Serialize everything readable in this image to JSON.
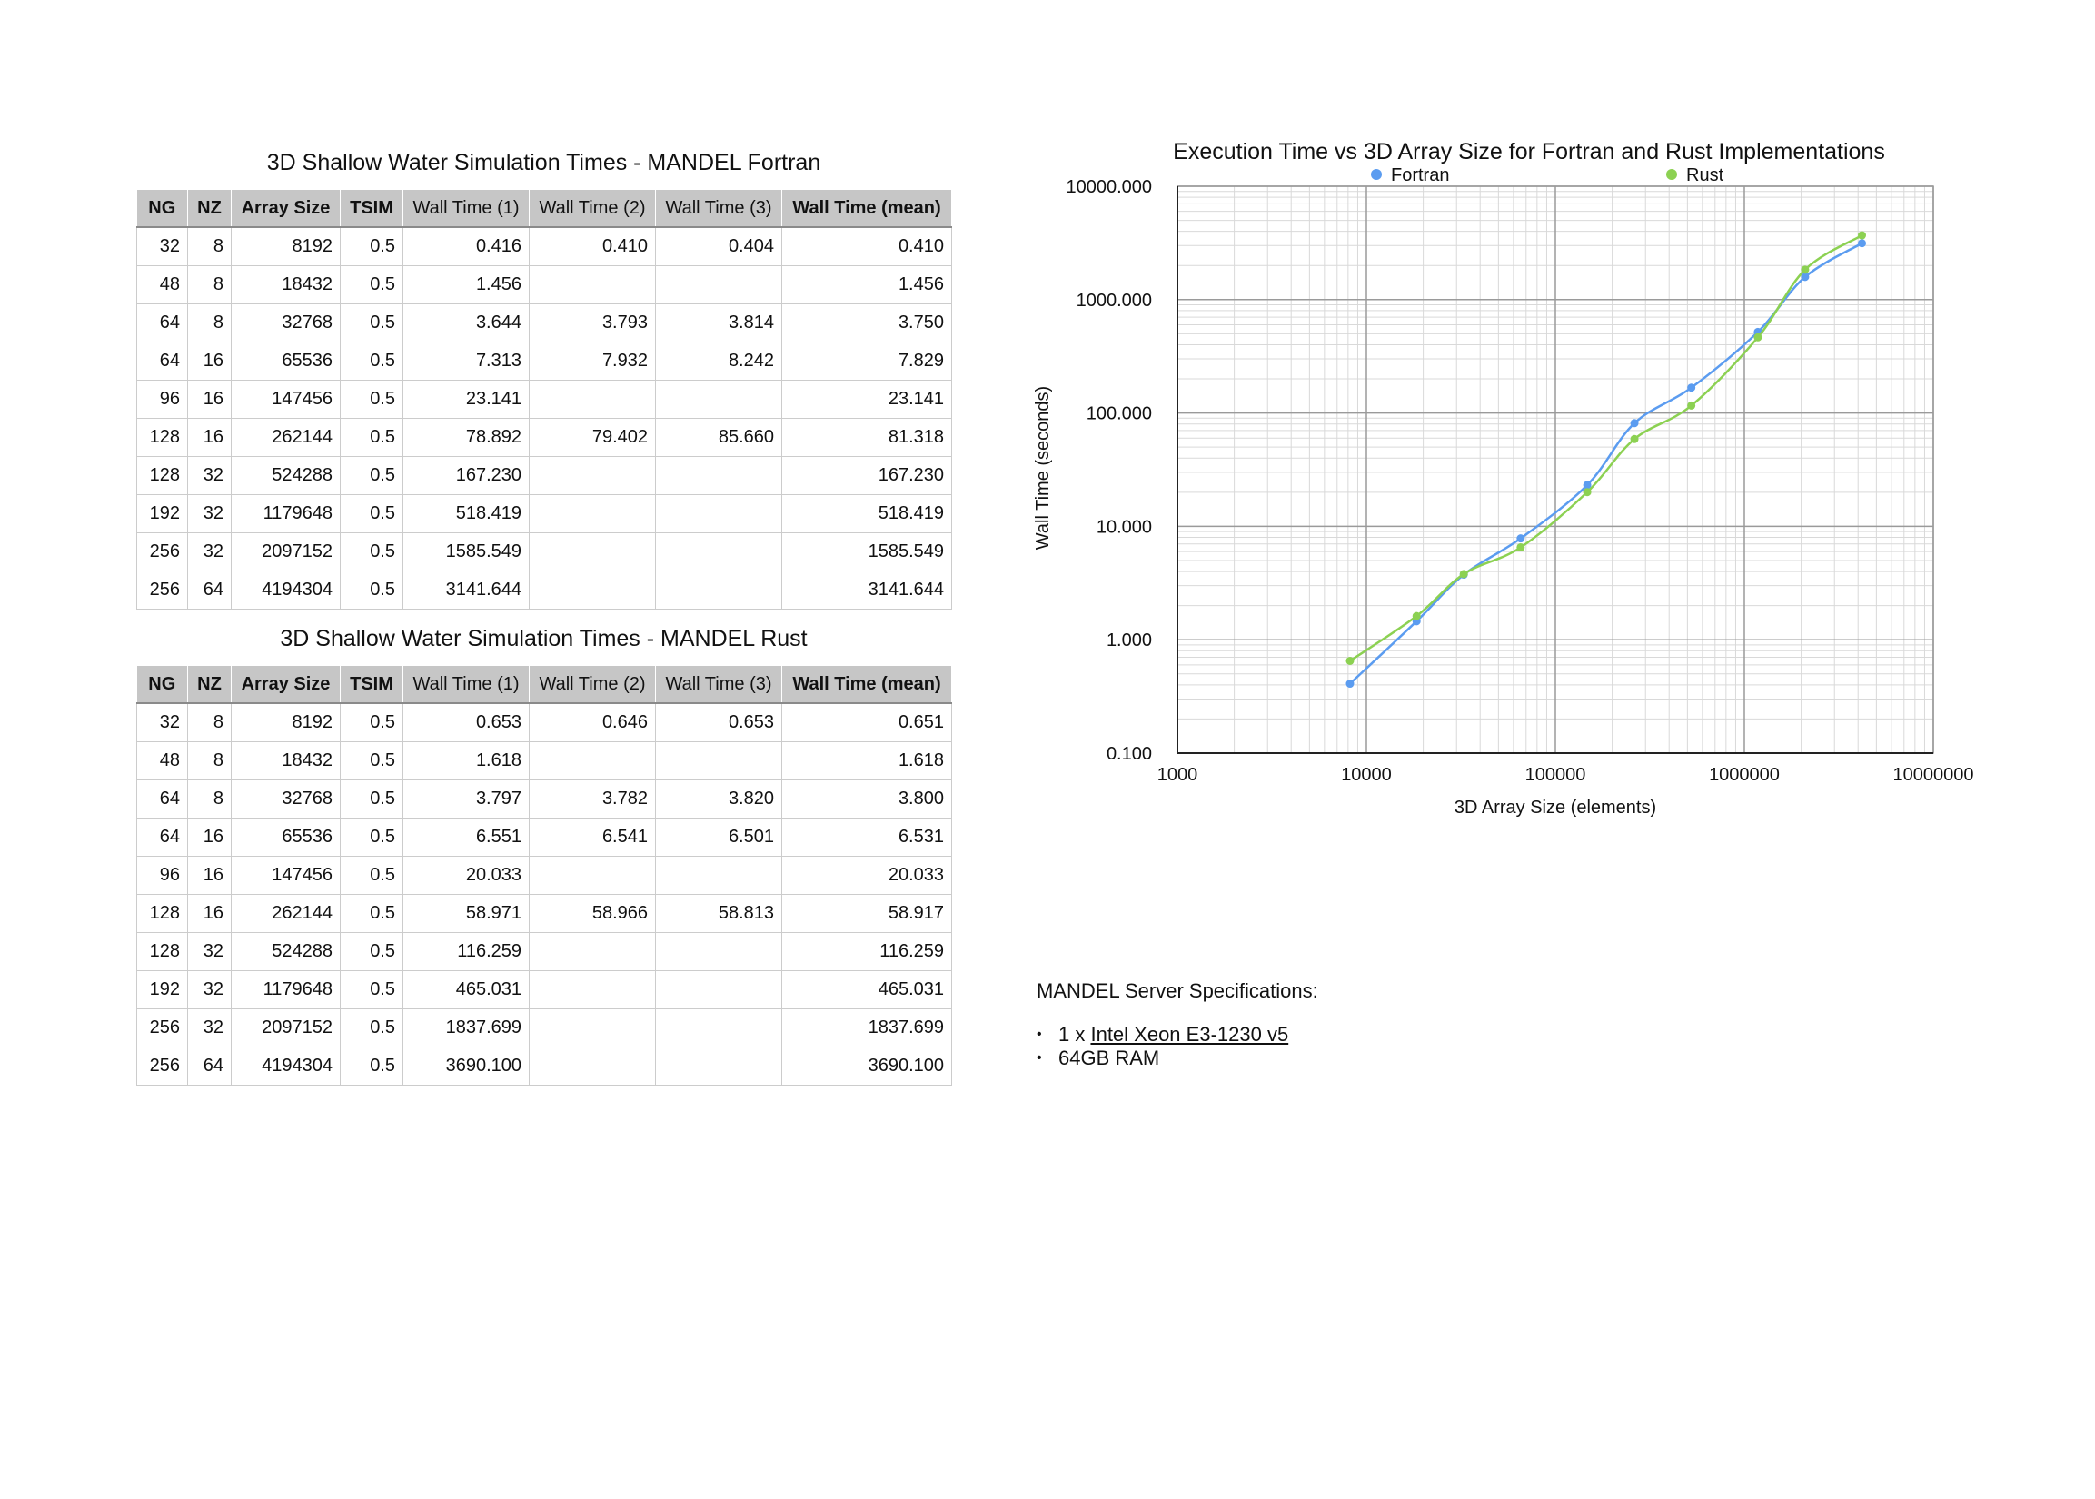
{
  "tables": [
    {
      "title": "3D Shallow Water Simulation Times - MANDEL Fortran",
      "headers": [
        "NG",
        "NZ",
        "Array Size",
        "TSIM",
        "Wall Time (1)",
        "Wall Time (2)",
        "Wall Time (3)",
        "Wall Time (mean)"
      ],
      "rows": [
        [
          "32",
          "8",
          "8192",
          "0.5",
          "0.416",
          "0.410",
          "0.404",
          "0.410"
        ],
        [
          "48",
          "8",
          "18432",
          "0.5",
          "1.456",
          "",
          "",
          "1.456"
        ],
        [
          "64",
          "8",
          "32768",
          "0.5",
          "3.644",
          "3.793",
          "3.814",
          "3.750"
        ],
        [
          "64",
          "16",
          "65536",
          "0.5",
          "7.313",
          "7.932",
          "8.242",
          "7.829"
        ],
        [
          "96",
          "16",
          "147456",
          "0.5",
          "23.141",
          "",
          "",
          "23.141"
        ],
        [
          "128",
          "16",
          "262144",
          "0.5",
          "78.892",
          "79.402",
          "85.660",
          "81.318"
        ],
        [
          "128",
          "32",
          "524288",
          "0.5",
          "167.230",
          "",
          "",
          "167.230"
        ],
        [
          "192",
          "32",
          "1179648",
          "0.5",
          "518.419",
          "",
          "",
          "518.419"
        ],
        [
          "256",
          "32",
          "2097152",
          "0.5",
          "1585.549",
          "",
          "",
          "1585.549"
        ],
        [
          "256",
          "64",
          "4194304",
          "0.5",
          "3141.644",
          "",
          "",
          "3141.644"
        ]
      ]
    },
    {
      "title": "3D Shallow Water Simulation Times - MANDEL Rust",
      "headers": [
        "NG",
        "NZ",
        "Array Size",
        "TSIM",
        "Wall Time (1)",
        "Wall Time (2)",
        "Wall Time (3)",
        "Wall Time (mean)"
      ],
      "rows": [
        [
          "32",
          "8",
          "8192",
          "0.5",
          "0.653",
          "0.646",
          "0.653",
          "0.651"
        ],
        [
          "48",
          "8",
          "18432",
          "0.5",
          "1.618",
          "",
          "",
          "1.618"
        ],
        [
          "64",
          "8",
          "32768",
          "0.5",
          "3.797",
          "3.782",
          "3.820",
          "3.800"
        ],
        [
          "64",
          "16",
          "65536",
          "0.5",
          "6.551",
          "6.541",
          "6.501",
          "6.531"
        ],
        [
          "96",
          "16",
          "147456",
          "0.5",
          "20.033",
          "",
          "",
          "20.033"
        ],
        [
          "128",
          "16",
          "262144",
          "0.5",
          "58.971",
          "58.966",
          "58.813",
          "58.917"
        ],
        [
          "128",
          "32",
          "524288",
          "0.5",
          "116.259",
          "",
          "",
          "116.259"
        ],
        [
          "192",
          "32",
          "1179648",
          "0.5",
          "465.031",
          "",
          "",
          "465.031"
        ],
        [
          "256",
          "32",
          "2097152",
          "0.5",
          "1837.699",
          "",
          "",
          "1837.699"
        ],
        [
          "256",
          "64",
          "4194304",
          "0.5",
          "3690.100",
          "",
          "",
          "3690.100"
        ]
      ]
    }
  ],
  "chart_data": {
    "type": "scatter",
    "title": "Execution Time vs 3D Array Size for Fortran and Rust Implementations",
    "xlabel": "3D Array Size (elements)",
    "ylabel": "Wall Time (seconds)",
    "x_scale": "log",
    "y_scale": "log",
    "xlim": [
      1000,
      10000000
    ],
    "ylim": [
      0.1,
      10000
    ],
    "x_ticks": [
      "1000",
      "10000",
      "100000",
      "1000000",
      "10000000"
    ],
    "y_ticks": [
      "0.100",
      "1.000",
      "10.000",
      "100.000",
      "1000.000",
      "10000.000"
    ],
    "grid": true,
    "legend_position": "top",
    "x": [
      8192,
      18432,
      32768,
      65536,
      147456,
      262144,
      524288,
      1179648,
      2097152,
      4194304
    ],
    "series": [
      {
        "name": "Fortran",
        "color": "#5b9cf0",
        "values": [
          0.41,
          1.456,
          3.75,
          7.829,
          23.141,
          81.318,
          167.23,
          518.419,
          1585.549,
          3141.644
        ]
      },
      {
        "name": "Rust",
        "color": "#8cd152",
        "values": [
          0.651,
          1.618,
          3.8,
          6.531,
          20.033,
          58.917,
          116.259,
          465.031,
          1837.699,
          3690.1
        ]
      }
    ]
  },
  "specs": {
    "heading": "MANDEL Server Specifications:",
    "bullet": "•",
    "items": [
      {
        "prefix": "1 x ",
        "link": "Intel Xeon E3-1230 v5"
      },
      {
        "prefix": "64GB RAM",
        "link": ""
      }
    ]
  }
}
